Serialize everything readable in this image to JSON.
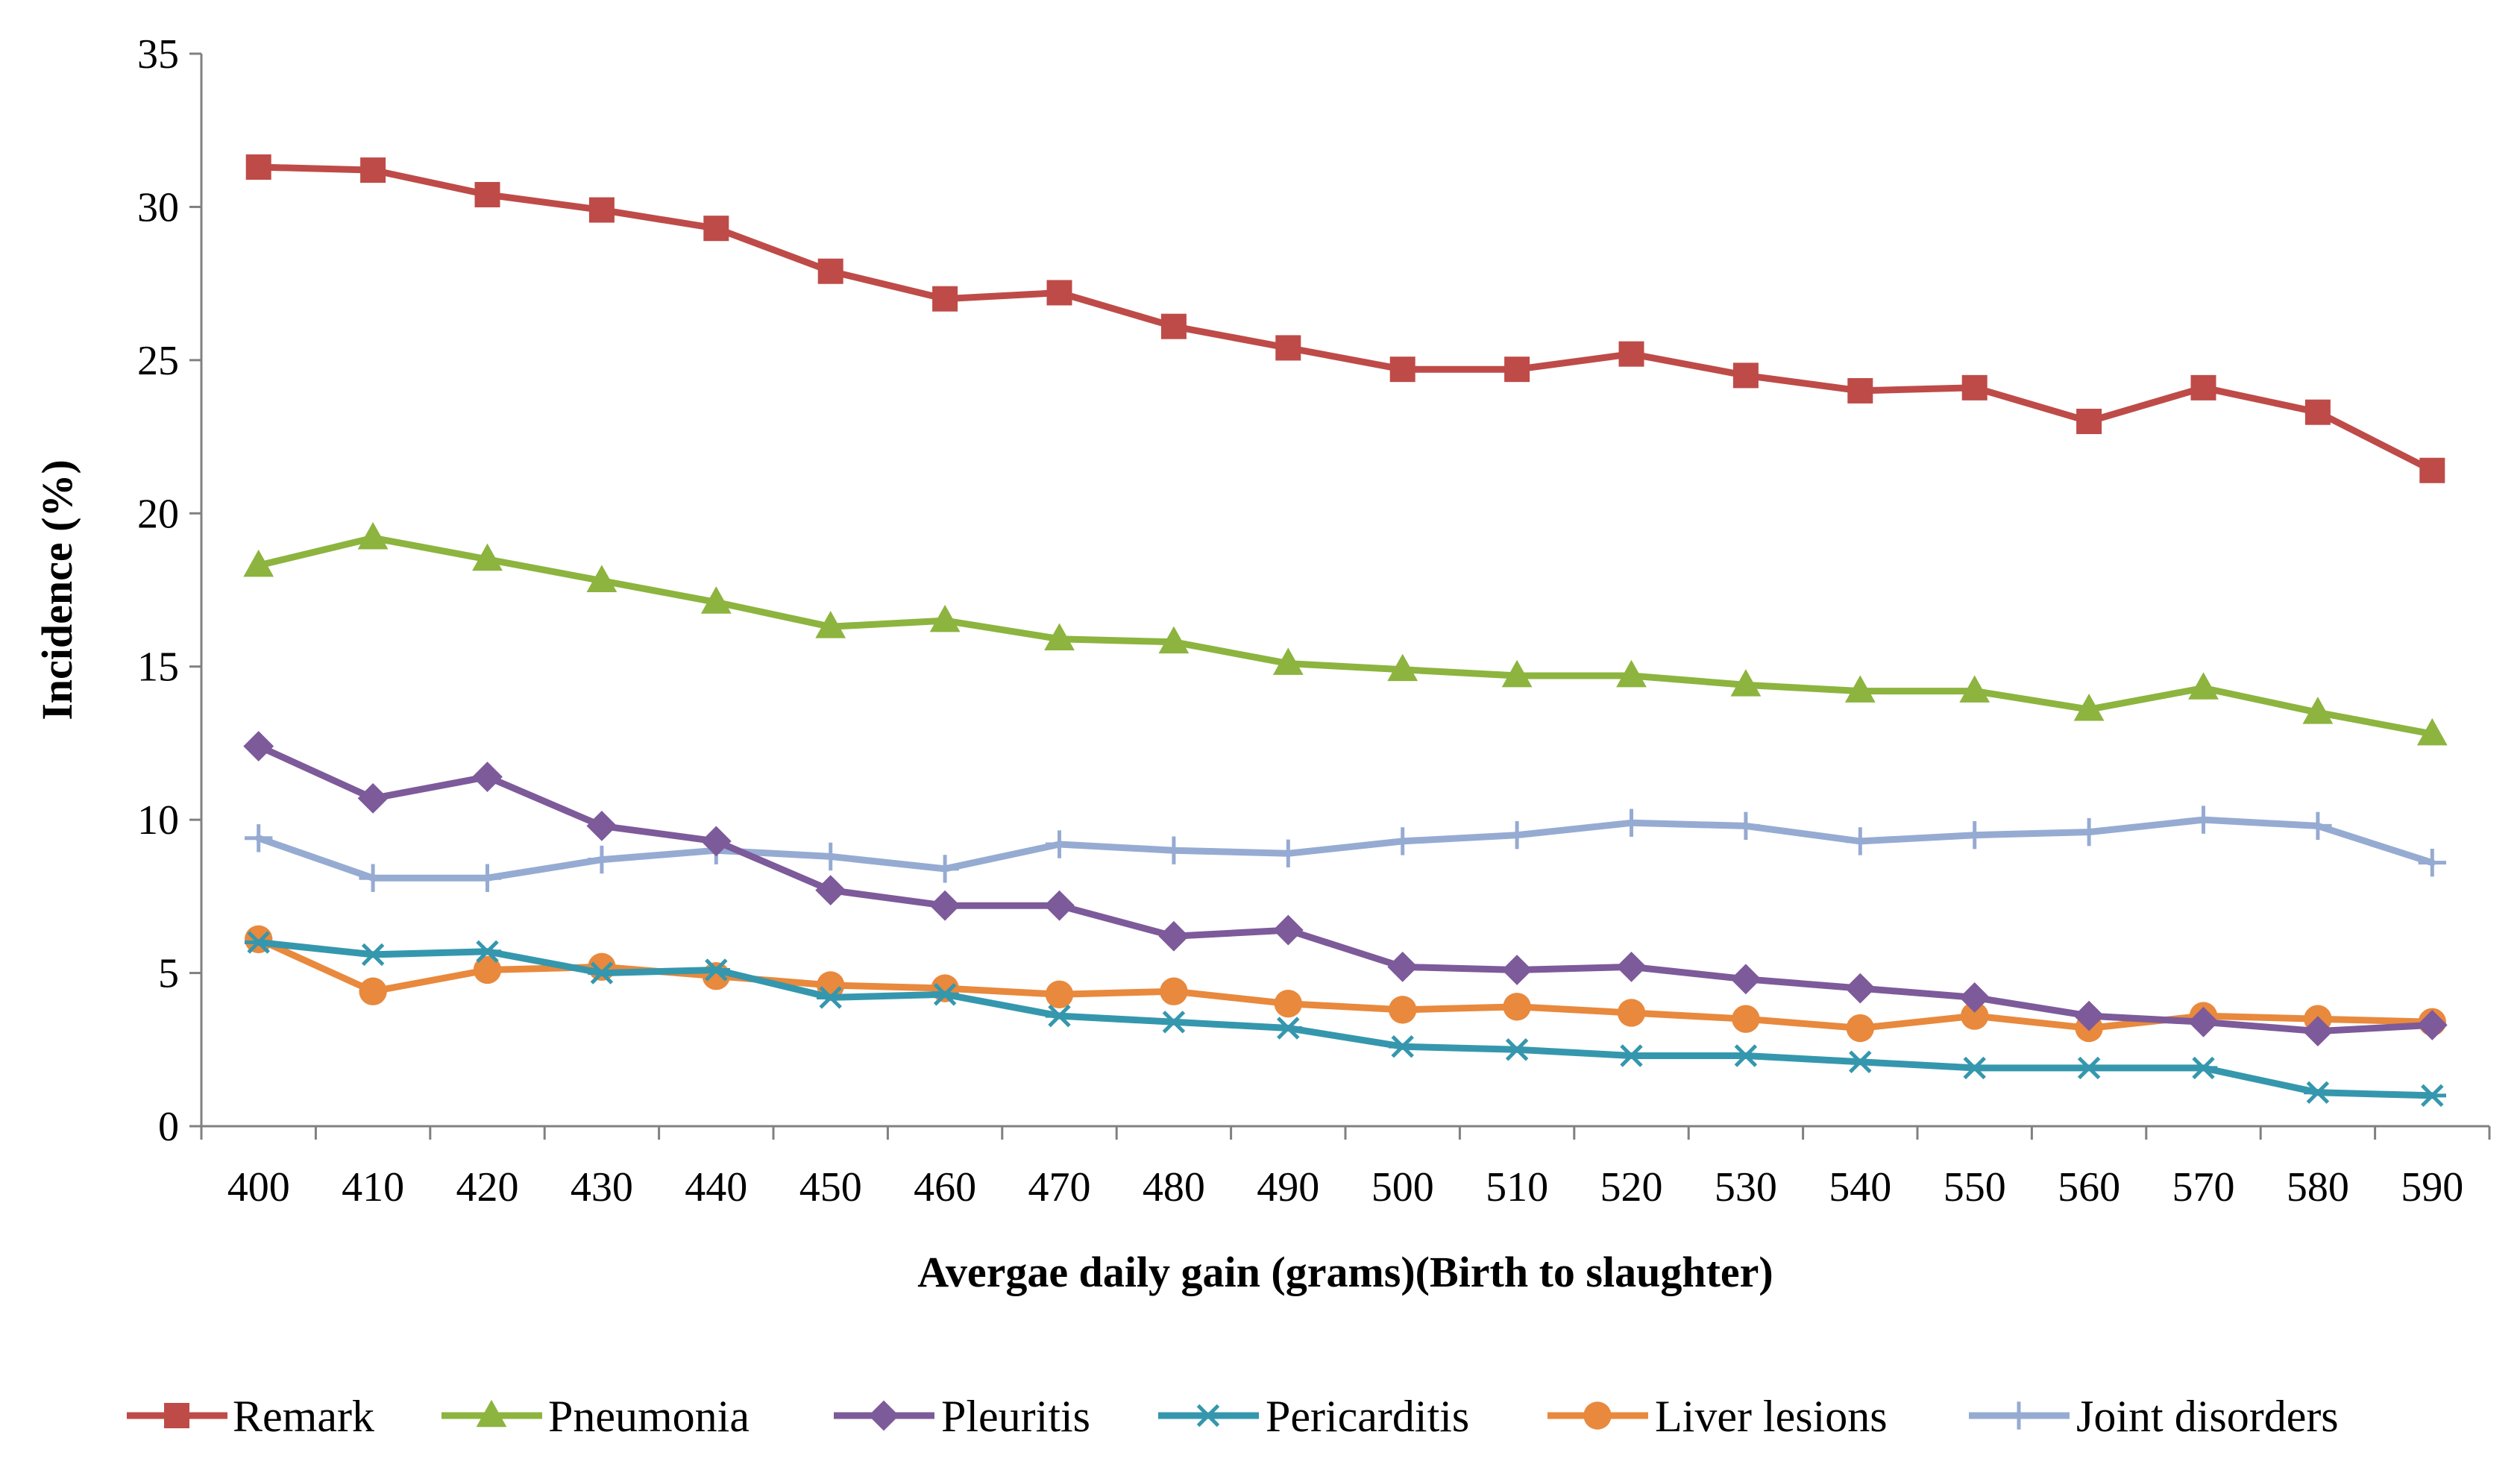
{
  "chart_data": {
    "type": "line",
    "title": "",
    "xlabel": "Avergae daily gain (grams)(Birth to slaughter)",
    "ylabel": "Incidence (%)",
    "ylim": [
      0,
      35
    ],
    "yticks": [
      0,
      5,
      10,
      15,
      20,
      25,
      30,
      35
    ],
    "ytick_labels": [
      "0",
      "5",
      "10",
      "15",
      "20",
      "25",
      "30",
      "35"
    ],
    "categories": [
      "400",
      "410",
      "420",
      "430",
      "440",
      "450",
      "460",
      "470",
      "480",
      "490",
      "500",
      "510",
      "520",
      "530",
      "540",
      "550",
      "560",
      "570",
      "580",
      "590"
    ],
    "grid": false,
    "legend_position": "bottom",
    "series": [
      {
        "name": "Remark",
        "color": "#BE4B48",
        "marker": "square",
        "values": [
          31.3,
          31.2,
          30.4,
          29.9,
          29.3,
          27.9,
          27.0,
          27.2,
          26.1,
          25.4,
          24.7,
          24.7,
          25.2,
          24.5,
          24.0,
          24.1,
          23.0,
          24.1,
          23.3,
          21.4
        ]
      },
      {
        "name": "Pneumonia",
        "color": "#8CB43F",
        "marker": "triangle",
        "values": [
          18.3,
          19.2,
          18.5,
          17.8,
          17.1,
          16.3,
          16.5,
          15.9,
          15.8,
          15.1,
          14.9,
          14.7,
          14.7,
          14.4,
          14.2,
          14.2,
          13.6,
          14.3,
          13.5,
          12.8
        ]
      },
      {
        "name": "Pleuritis",
        "color": "#7D5A9A",
        "marker": "diamond",
        "values": [
          12.4,
          10.7,
          11.4,
          9.8,
          9.3,
          7.7,
          7.2,
          7.2,
          6.2,
          6.4,
          5.2,
          5.1,
          5.2,
          4.8,
          4.5,
          4.2,
          3.6,
          3.4,
          3.1,
          3.3
        ]
      },
      {
        "name": "Pericarditis",
        "color": "#3597AD",
        "marker": "star",
        "values": [
          6.0,
          5.6,
          5.7,
          5.0,
          5.1,
          4.2,
          4.3,
          3.6,
          3.4,
          3.2,
          2.6,
          2.5,
          2.3,
          2.3,
          2.1,
          1.9,
          1.9,
          1.9,
          1.1,
          1.0
        ]
      },
      {
        "name": "Liver lesions",
        "color": "#E8893D",
        "marker": "circle",
        "values": [
          6.1,
          4.4,
          5.1,
          5.2,
          4.9,
          4.6,
          4.5,
          4.3,
          4.4,
          4.0,
          3.8,
          3.9,
          3.7,
          3.5,
          3.2,
          3.6,
          3.2,
          3.6,
          3.5,
          3.4
        ]
      },
      {
        "name": "Joint disorders",
        "color": "#96ABD2",
        "marker": "plus",
        "values": [
          9.4,
          8.1,
          8.1,
          8.7,
          9.0,
          8.8,
          8.4,
          9.2,
          9.0,
          8.9,
          9.3,
          9.5,
          9.9,
          9.8,
          9.3,
          9.5,
          9.6,
          10.0,
          9.8,
          8.6
        ]
      }
    ]
  }
}
